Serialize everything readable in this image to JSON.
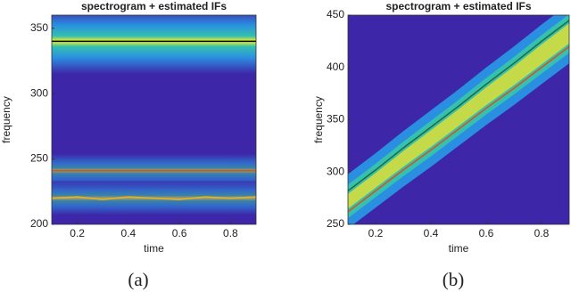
{
  "chart_data": [
    {
      "type": "spectrogram",
      "title": "spectrogram + estimated IFs",
      "x_label": "time",
      "y_label": "frequency",
      "caption": "(a)",
      "xlim": [
        0.1,
        0.9
      ],
      "xticks": [
        0.2,
        0.4,
        0.6,
        0.8
      ],
      "ylim": [
        200,
        360
      ],
      "yticks": [
        200,
        250,
        300,
        350
      ],
      "x": [
        0.1,
        0.2,
        0.3,
        0.4,
        0.5,
        0.6,
        0.7,
        0.8,
        0.9
      ],
      "series": [
        {
          "color": "#000000",
          "values": [
            340,
            340,
            340,
            340,
            340,
            340,
            340,
            340,
            340
          ]
        },
        {
          "color": "#d95319",
          "values": [
            241,
            241,
            241,
            241,
            241,
            241,
            241,
            241,
            241
          ]
        },
        {
          "color": "#edb120",
          "values": [
            220,
            221,
            219,
            221,
            220,
            219,
            221,
            220,
            221
          ]
        }
      ]
    },
    {
      "type": "spectrogram",
      "title": "spectrogram + estimated IFs",
      "x_label": "time",
      "y_label": "frequency",
      "caption": "(b)",
      "xlim": [
        0.1,
        0.9
      ],
      "xticks": [
        0.2,
        0.4,
        0.6,
        0.8
      ],
      "ylim": [
        250,
        450
      ],
      "yticks": [
        250,
        300,
        350,
        400,
        450
      ],
      "x": [
        0.1,
        0.2,
        0.3,
        0.4,
        0.5,
        0.6,
        0.7,
        0.8,
        0.9
      ],
      "series": [
        {
          "color": "#1f6b3a",
          "values": [
            282,
            302,
            323,
            343,
            363,
            384,
            404,
            425,
            445
          ]
        },
        {
          "color": "#d95319",
          "values": [
            262,
            282,
            302,
            321,
            341,
            361,
            380,
            400,
            420
          ]
        }
      ]
    }
  ]
}
